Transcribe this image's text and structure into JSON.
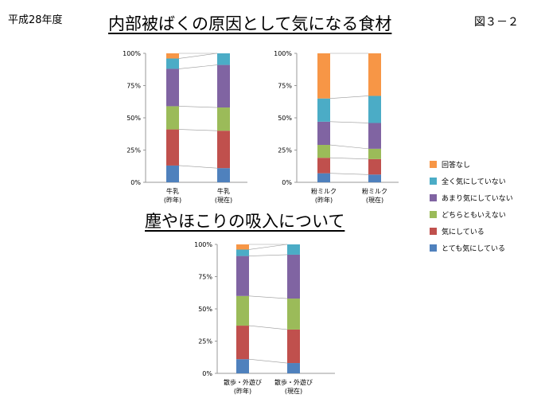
{
  "header": {
    "year_label": "平成28年度",
    "title": "内部被ばくの原因として気になる食材",
    "figure_label": "図３－２",
    "subtitle": "塵やほこりの吸入について"
  },
  "legend": {
    "placement": "right",
    "entries": [
      {
        "name": "回答なし",
        "color": "#F79646"
      },
      {
        "name": "全く気にしていない",
        "color": "#4BACC6"
      },
      {
        "name": "あまり気にしていない",
        "color": "#8064A2"
      },
      {
        "name": "どちらともいえない",
        "color": "#9BBB59"
      },
      {
        "name": "気にしている",
        "color": "#C0504D"
      },
      {
        "name": "とても気にしている",
        "color": "#4F81BD"
      }
    ]
  },
  "chart_data": [
    {
      "type": "bar",
      "stacked": true,
      "percent": true,
      "categories": [
        [
          "牛乳",
          "(昨年)"
        ],
        [
          "牛乳",
          "(現在)"
        ]
      ],
      "yticks": [
        "0%",
        "25%",
        "50%",
        "75%",
        "100%"
      ],
      "ylim": [
        0,
        100
      ],
      "series": [
        {
          "name": "とても気にしている",
          "values": [
            13,
            11
          ]
        },
        {
          "name": "気にしている",
          "values": [
            28,
            29
          ]
        },
        {
          "name": "どちらともいえない",
          "values": [
            18,
            18
          ]
        },
        {
          "name": "あまり気にしていない",
          "values": [
            29,
            33
          ]
        },
        {
          "name": "全く気にしていない",
          "values": [
            8,
            9
          ]
        },
        {
          "name": "回答なし",
          "values": [
            4,
            0
          ]
        }
      ]
    },
    {
      "type": "bar",
      "stacked": true,
      "percent": true,
      "categories": [
        [
          "粉ミルク",
          "(昨年)"
        ],
        [
          "粉ミルク",
          "(現在)"
        ]
      ],
      "yticks": [
        "0%",
        "25%",
        "50%",
        "75%",
        "100%"
      ],
      "ylim": [
        0,
        100
      ],
      "series": [
        {
          "name": "とても気にしている",
          "values": [
            7,
            6
          ]
        },
        {
          "name": "気にしている",
          "values": [
            12,
            12
          ]
        },
        {
          "name": "どちらともいえない",
          "values": [
            10,
            8
          ]
        },
        {
          "name": "あまり気にしていない",
          "values": [
            18,
            20
          ]
        },
        {
          "name": "全く気にしていない",
          "values": [
            18,
            21
          ]
        },
        {
          "name": "回答なし",
          "values": [
            35,
            33
          ]
        }
      ]
    },
    {
      "type": "bar",
      "stacked": true,
      "percent": true,
      "categories": [
        [
          "散歩・外遊び",
          "(昨年)"
        ],
        [
          "散歩・外遊び",
          "(現在)"
        ]
      ],
      "yticks": [
        "0%",
        "25%",
        "50%",
        "75%",
        "100%"
      ],
      "ylim": [
        0,
        100
      ],
      "series": [
        {
          "name": "とても気にしている",
          "values": [
            11,
            8
          ]
        },
        {
          "name": "気にしている",
          "values": [
            26,
            26
          ]
        },
        {
          "name": "どちらともいえない",
          "values": [
            23,
            24
          ]
        },
        {
          "name": "あまり気にしていない",
          "values": [
            31,
            34
          ]
        },
        {
          "name": "全く気にしていない",
          "values": [
            5,
            8
          ]
        },
        {
          "name": "回答なし",
          "values": [
            4,
            0
          ]
        }
      ]
    }
  ]
}
